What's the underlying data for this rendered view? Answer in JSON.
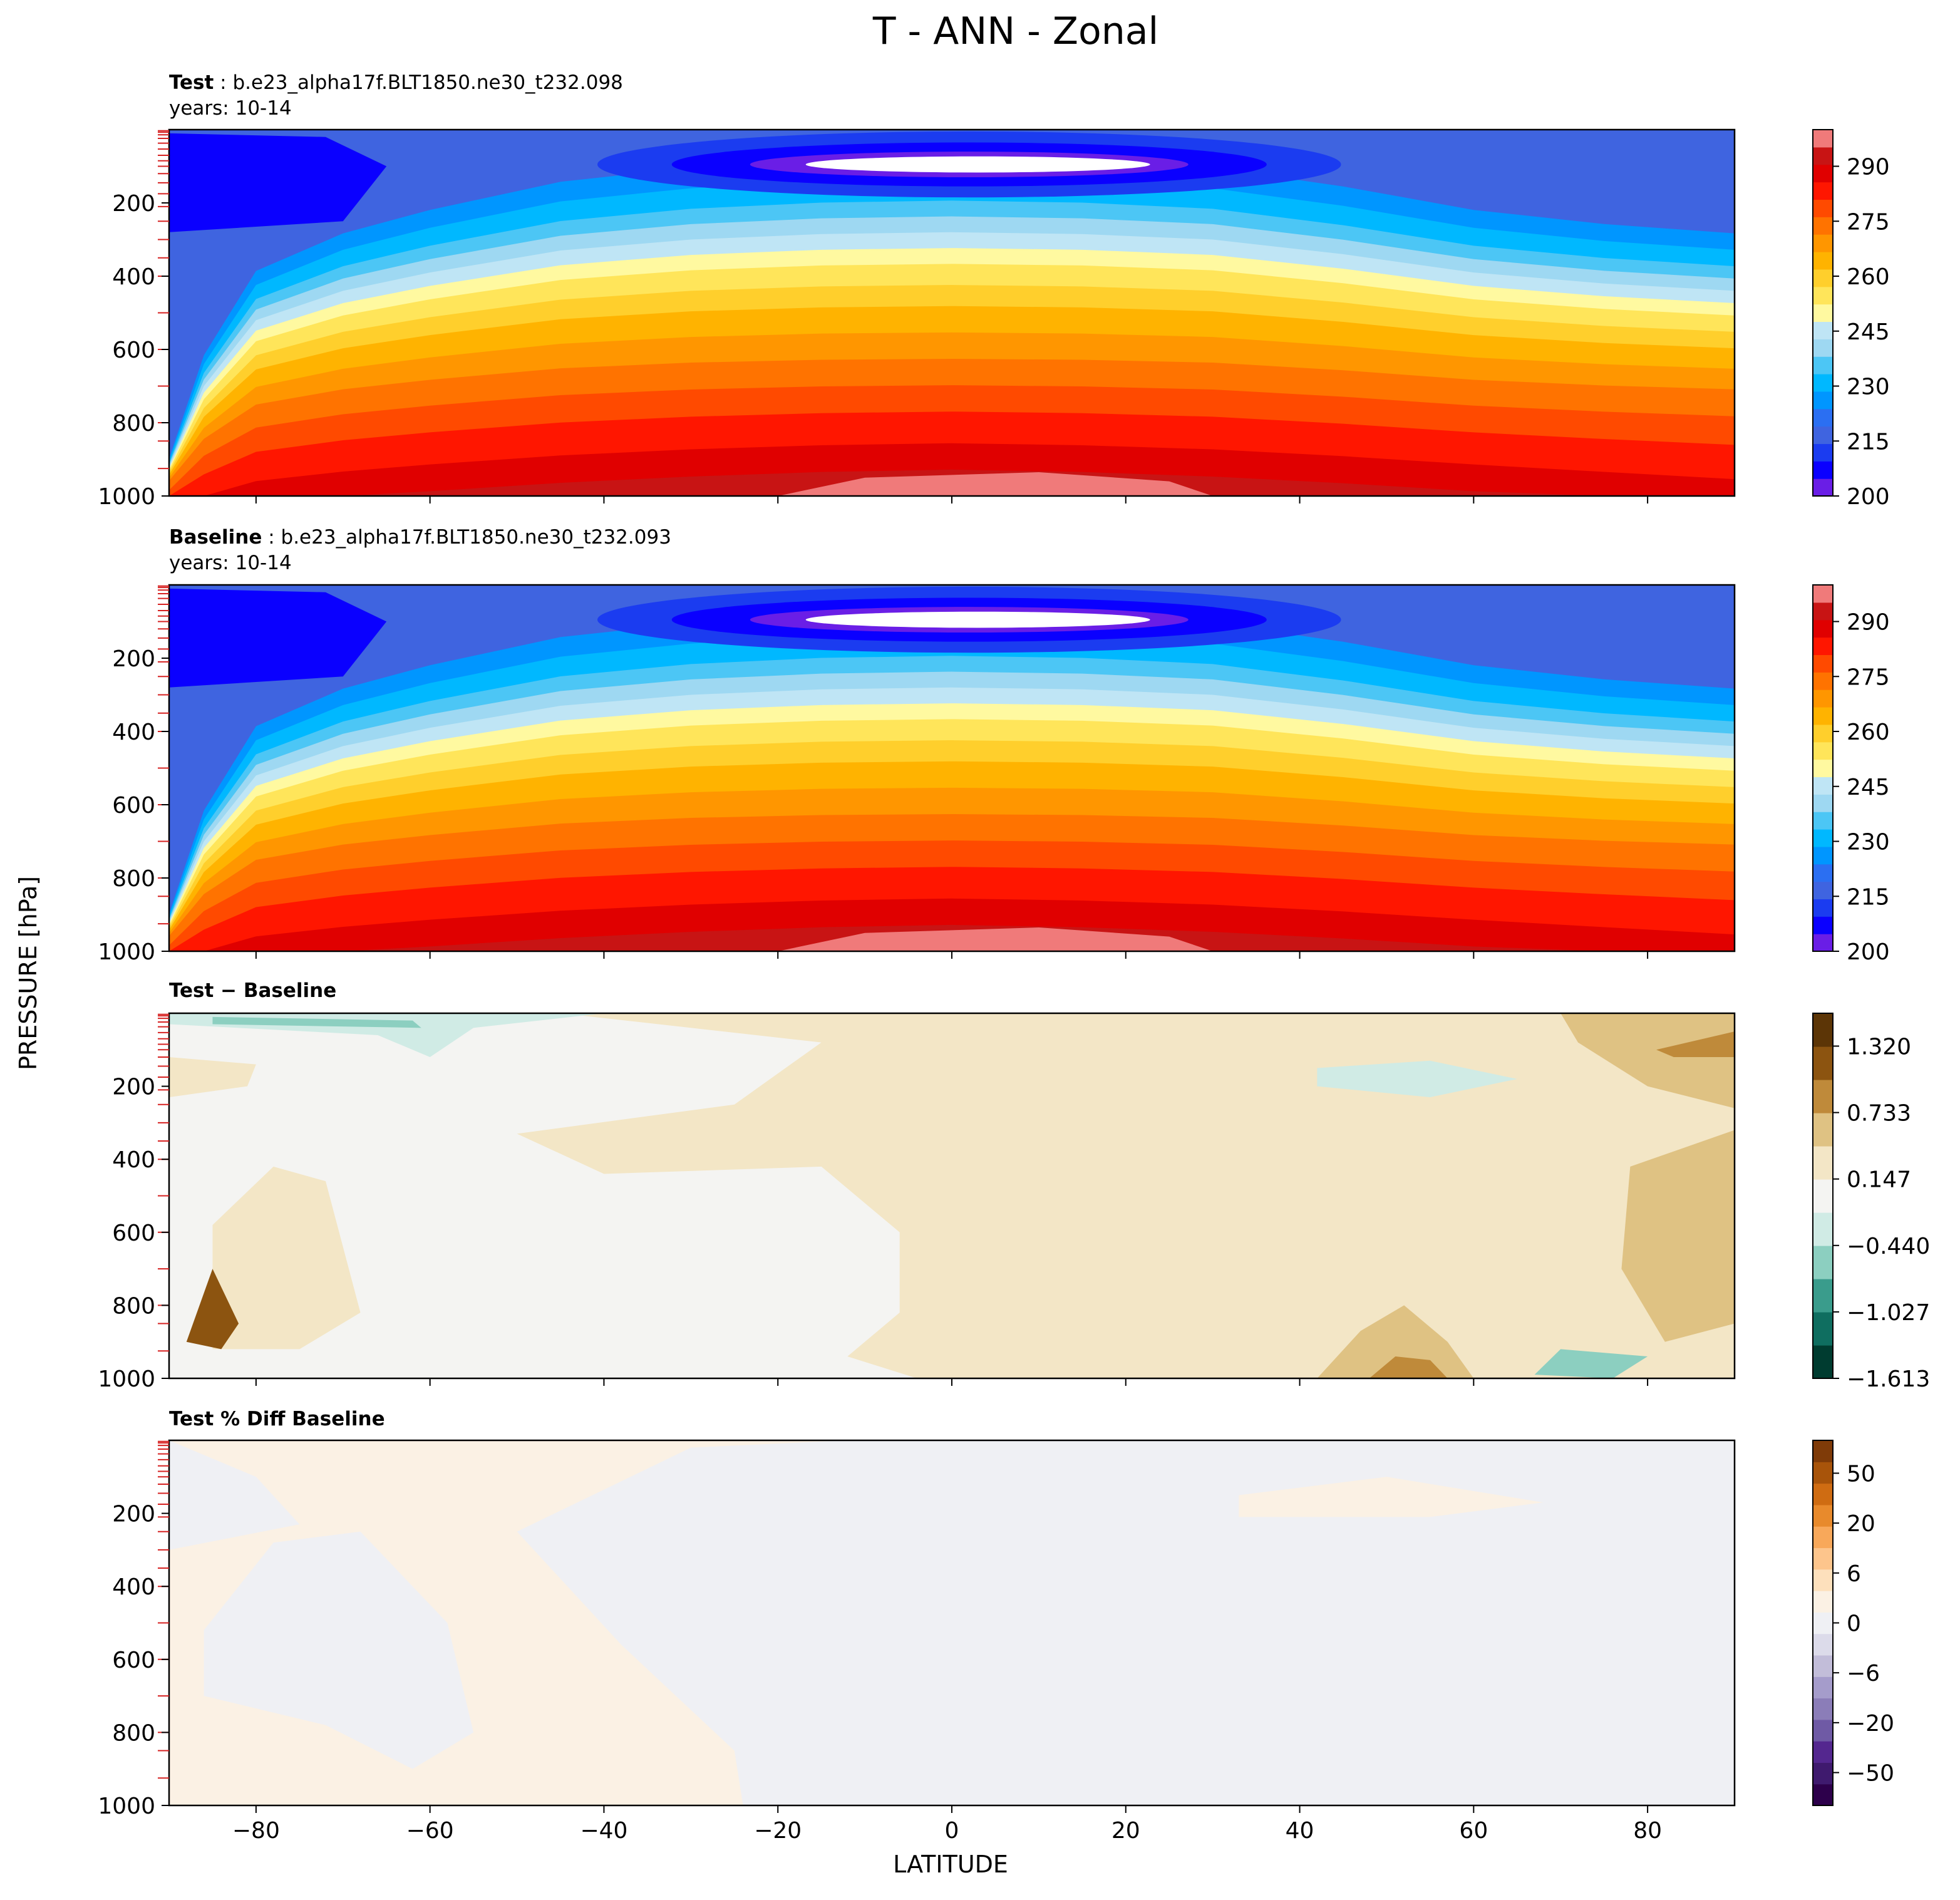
{
  "figure": {
    "title": "T - ANN - Zonal",
    "xlabel": "LATITUDE",
    "ylabel": "PRESSURE [hPa]"
  },
  "chart_data": [
    {
      "type": "heatmap",
      "panel": "test",
      "title_bold": "Test",
      "title_rest": ": b.e23_alpha17f.BLT1850.ne30_t232.098",
      "subtitle": "years: 10-14",
      "x_ticks": [
        -80,
        -60,
        -40,
        -20,
        0,
        20,
        40,
        60,
        80
      ],
      "xlim": [
        -90,
        90
      ],
      "y_ticks": [
        200,
        400,
        600,
        800,
        1000
      ],
      "ylim": [
        1000,
        0
      ],
      "colorbar": {
        "levels": [
          200,
          205,
          210,
          215,
          220,
          225,
          230,
          235,
          240,
          245,
          250,
          255,
          260,
          265,
          270,
          275,
          280,
          285,
          290,
          295,
          300
        ],
        "ticks": [
          290,
          275,
          260,
          245,
          230,
          215,
          200
        ],
        "colors": [
          "#6a1ee6",
          "#0a00ff",
          "#1b3cf0",
          "#3f64e0",
          "#2b6ff2",
          "#0096ff",
          "#00b8ff",
          "#4cc6f5",
          "#9ed8f2",
          "#bfe5f5",
          "#fff9a0",
          "#ffe55a",
          "#ffcf2c",
          "#ffb300",
          "#ff9600",
          "#ff7300",
          "#ff4a00",
          "#ff1600",
          "#e00000",
          "#c81414",
          "#f07a7a"
        ]
      },
      "data_range": [
        200,
        300
      ]
    },
    {
      "type": "heatmap",
      "panel": "baseline",
      "title_bold": "Baseline",
      "title_rest": ": b.e23_alpha17f.BLT1850.ne30_t232.093",
      "subtitle": "years: 10-14",
      "x_ticks": [
        -80,
        -60,
        -40,
        -20,
        0,
        20,
        40,
        60,
        80
      ],
      "xlim": [
        -90,
        90
      ],
      "y_ticks": [
        200,
        400,
        600,
        800,
        1000
      ],
      "ylim": [
        1000,
        0
      ],
      "colorbar": {
        "levels": [
          200,
          205,
          210,
          215,
          220,
          225,
          230,
          235,
          240,
          245,
          250,
          255,
          260,
          265,
          270,
          275,
          280,
          285,
          290,
          295,
          300
        ],
        "ticks": [
          290,
          275,
          260,
          245,
          230,
          215,
          200
        ],
        "colors": [
          "#6a1ee6",
          "#0a00ff",
          "#1b3cf0",
          "#3f64e0",
          "#2b6ff2",
          "#0096ff",
          "#00b8ff",
          "#4cc6f5",
          "#9ed8f2",
          "#bfe5f5",
          "#fff9a0",
          "#ffe55a",
          "#ffcf2c",
          "#ffb300",
          "#ff9600",
          "#ff7300",
          "#ff4a00",
          "#ff1600",
          "#e00000",
          "#c81414",
          "#f07a7a"
        ]
      },
      "data_range": [
        200,
        300
      ]
    },
    {
      "type": "heatmap",
      "panel": "diff",
      "title_bold": "Test − Baseline",
      "title_rest": "",
      "subtitle": "",
      "x_ticks": [
        -80,
        -60,
        -40,
        -20,
        0,
        20,
        40,
        60,
        80
      ],
      "xlim": [
        -90,
        90
      ],
      "y_ticks": [
        200,
        400,
        600,
        800,
        1000
      ],
      "ylim": [
        1000,
        0
      ],
      "colorbar": {
        "ticks": [
          "1.320",
          "0.733",
          "0.147",
          "−0.440",
          "−1.027",
          "−1.613"
        ],
        "colors": [
          "#003c30",
          "#0f6e60",
          "#3a9c8c",
          "#8ccfc0",
          "#d0ebe5",
          "#f4f4f2",
          "#f3e6c6",
          "#dfc283",
          "#bf8a3a",
          "#8c5410",
          "#5c3506"
        ]
      },
      "data_range": [
        -1.613,
        1.613
      ]
    },
    {
      "type": "heatmap",
      "panel": "pctdiff",
      "title_bold": "Test % Diff Baseline",
      "title_rest": "",
      "subtitle": "",
      "x_ticks": [
        -80,
        -60,
        -40,
        -20,
        0,
        20,
        40,
        60,
        80
      ],
      "xlim": [
        -90,
        90
      ],
      "y_ticks": [
        200,
        400,
        600,
        800,
        1000
      ],
      "ylim": [
        1000,
        0
      ],
      "colorbar": {
        "ticks": [
          "50",
          "20",
          "6",
          "0",
          "−6",
          "−20",
          "−50"
        ],
        "colors": [
          "#2d004b",
          "#3f1a6e",
          "#54278f",
          "#6f5aa5",
          "#8b7db8",
          "#a59ccb",
          "#c2bdd9",
          "#dcdbea",
          "#eff0f4",
          "#fbf1e4",
          "#fde0bc",
          "#fdc58c",
          "#f8a85a",
          "#e88a2c",
          "#cf6c12",
          "#a8540a",
          "#7f3b08"
        ]
      },
      "data_range": [
        -60,
        60
      ]
    }
  ]
}
